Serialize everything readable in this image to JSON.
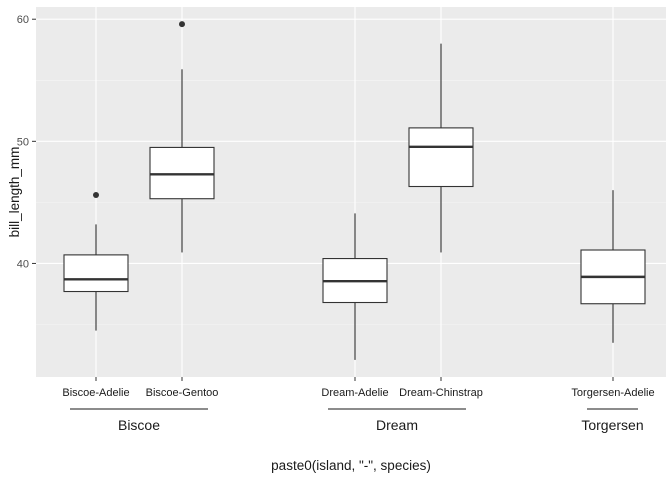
{
  "chart_data": {
    "type": "boxplot",
    "xlabel": "paste0(island, \"-\", species)",
    "ylabel": "bill_length_mm",
    "ylim": [
      30.7,
      61.0
    ],
    "yticks": [
      40,
      50,
      60
    ],
    "grid": true,
    "categories": [
      "Biscoe-Adelie",
      "Biscoe-Gentoo",
      "Dream-Adelie",
      "Dream-Chinstrap",
      "Torgersen-Adelie"
    ],
    "groups": [
      {
        "label": "Biscoe",
        "members": [
          "Biscoe-Adelie",
          "Biscoe-Gentoo"
        ]
      },
      {
        "label": "Dream",
        "members": [
          "Dream-Adelie",
          "Dream-Chinstrap"
        ]
      },
      {
        "label": "Torgersen",
        "members": [
          "Torgersen-Adelie"
        ]
      }
    ],
    "boxes": [
      {
        "category": "Biscoe-Adelie",
        "min": 34.5,
        "q1": 37.7,
        "median": 38.7,
        "q3": 40.7,
        "max": 43.2,
        "outliers": [
          45.6
        ]
      },
      {
        "category": "Biscoe-Gentoo",
        "min": 40.9,
        "q1": 45.3,
        "median": 47.3,
        "q3": 49.5,
        "max": 55.9,
        "outliers": [
          59.6
        ]
      },
      {
        "category": "Dream-Adelie",
        "min": 32.1,
        "q1": 36.8,
        "median": 38.55,
        "q3": 40.4,
        "max": 44.1,
        "outliers": []
      },
      {
        "category": "Dream-Chinstrap",
        "min": 40.9,
        "q1": 46.3,
        "median": 49.55,
        "q3": 51.1,
        "max": 58.0,
        "outliers": []
      },
      {
        "category": "Torgersen-Adelie",
        "min": 33.5,
        "q1": 36.7,
        "median": 38.9,
        "q3": 41.1,
        "max": 46.0,
        "outliers": []
      }
    ]
  }
}
